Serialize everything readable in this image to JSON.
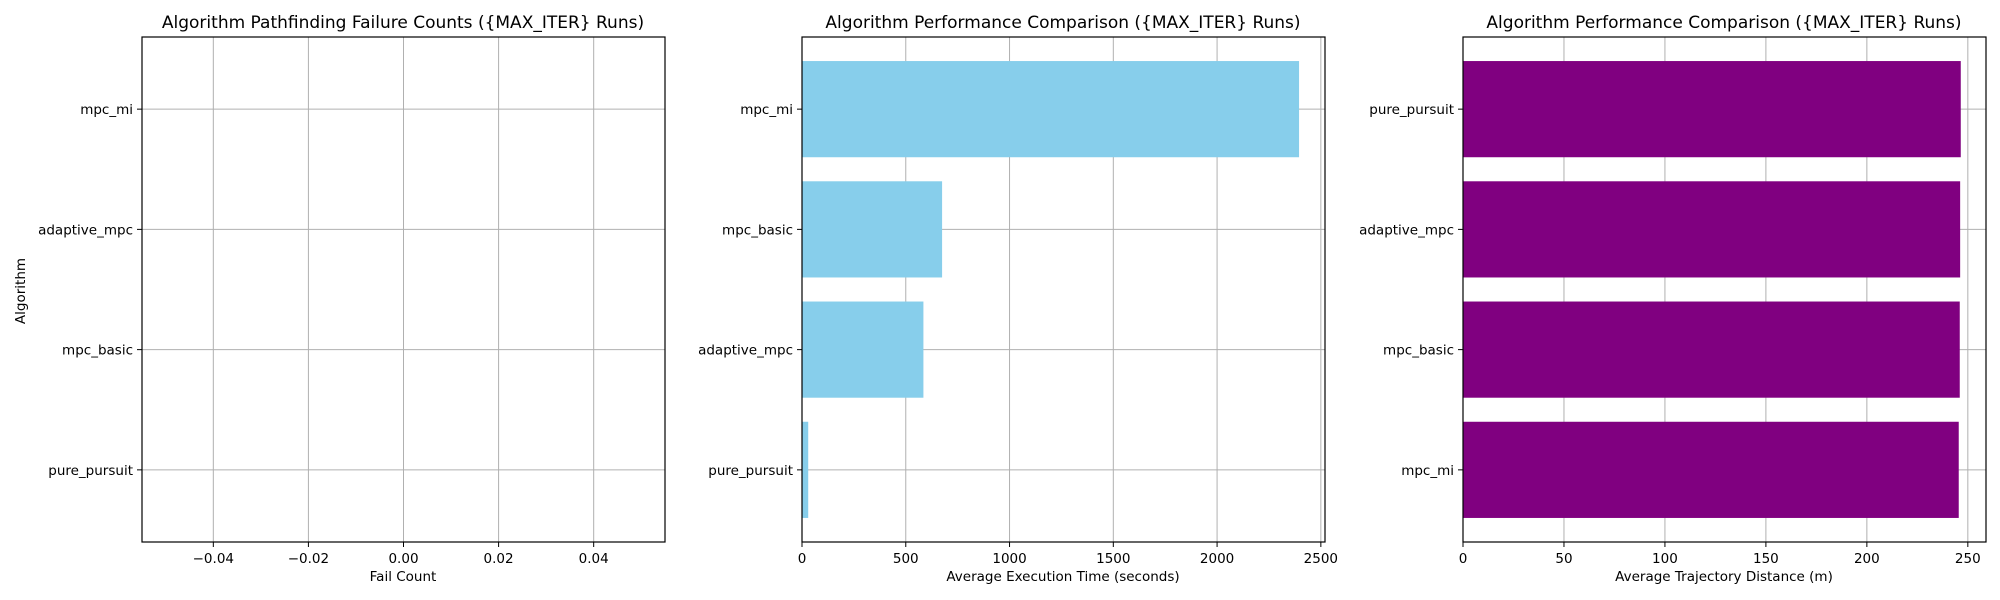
{
  "chart_data": [
    {
      "type": "bar",
      "orientation": "horizontal",
      "title": "Algorithm Pathfinding Failure Counts ({MAX_ITER} Runs)",
      "xlabel": "Fail Count",
      "ylabel": "Algorithm",
      "categories": [
        "pure_pursuit",
        "mpc_basic",
        "adaptive_mpc",
        "mpc_mi"
      ],
      "values": [
        0,
        0,
        0,
        0
      ],
      "xlim": [
        -0.055,
        0.055
      ],
      "xticks": [
        -0.04,
        -0.02,
        0.0,
        0.02,
        0.04
      ],
      "xtick_labels": [
        "−0.04",
        "−0.02",
        "0.00",
        "0.02",
        "0.04"
      ],
      "color": "#87CEEB",
      "grid": true
    },
    {
      "type": "bar",
      "orientation": "horizontal",
      "title": "Algorithm Performance Comparison ({MAX_ITER} Runs)",
      "xlabel": "Average Execution Time (seconds)",
      "ylabel": "",
      "categories": [
        "pure_pursuit",
        "adaptive_mpc",
        "mpc_basic",
        "mpc_mi"
      ],
      "values": [
        30,
        585,
        675,
        2395
      ],
      "xlim": [
        0,
        2520
      ],
      "xticks": [
        0,
        500,
        1000,
        1500,
        2000,
        2500
      ],
      "xtick_labels": [
        "0",
        "500",
        "1000",
        "1500",
        "2000",
        "2500"
      ],
      "color": "#87CEEB",
      "grid": true
    },
    {
      "type": "bar",
      "orientation": "horizontal",
      "title": "Algorithm Performance Comparison ({MAX_ITER} Runs)",
      "xlabel": "Average Trajectory Distance (m)",
      "ylabel": "",
      "categories": [
        "mpc_mi",
        "mpc_basic",
        "adaptive_mpc",
        "pure_pursuit"
      ],
      "values": [
        245.5,
        246,
        246.2,
        246.5
      ],
      "xlim": [
        0,
        259
      ],
      "xticks": [
        0,
        50,
        100,
        150,
        200,
        250
      ],
      "xtick_labels": [
        "0",
        "50",
        "100",
        "150",
        "200",
        "250"
      ],
      "color": "#800080",
      "grid": true
    }
  ]
}
